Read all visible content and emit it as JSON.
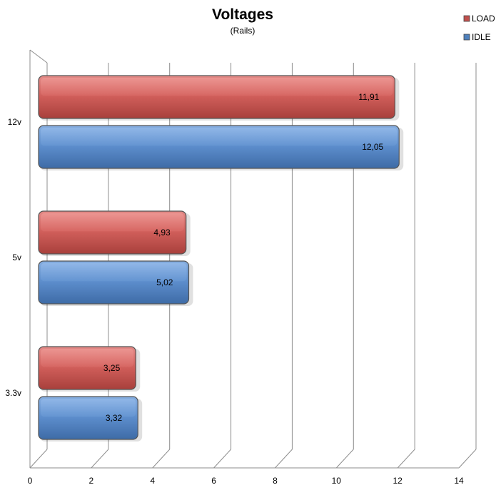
{
  "chart_data": {
    "type": "bar",
    "orientation": "horizontal",
    "title": "Voltages",
    "subtitle": "(Rails)",
    "categories": [
      "12v",
      "5v",
      "3.3v"
    ],
    "series": [
      {
        "name": "LOAD",
        "values": [
          11.91,
          4.93,
          3.25
        ],
        "labels": [
          "11,91",
          "4,93",
          "3,25"
        ],
        "color": "#c0504d"
      },
      {
        "name": "IDLE",
        "values": [
          12.05,
          5.02,
          3.32
        ],
        "labels": [
          "12,05",
          "5,02",
          "3,32"
        ],
        "color": "#4f81bd"
      }
    ],
    "xlim": [
      0,
      14
    ],
    "xticks": [
      "0",
      "2",
      "4",
      "6",
      "8",
      "10",
      "12",
      "14"
    ],
    "grid": true,
    "legend": "top-right"
  }
}
